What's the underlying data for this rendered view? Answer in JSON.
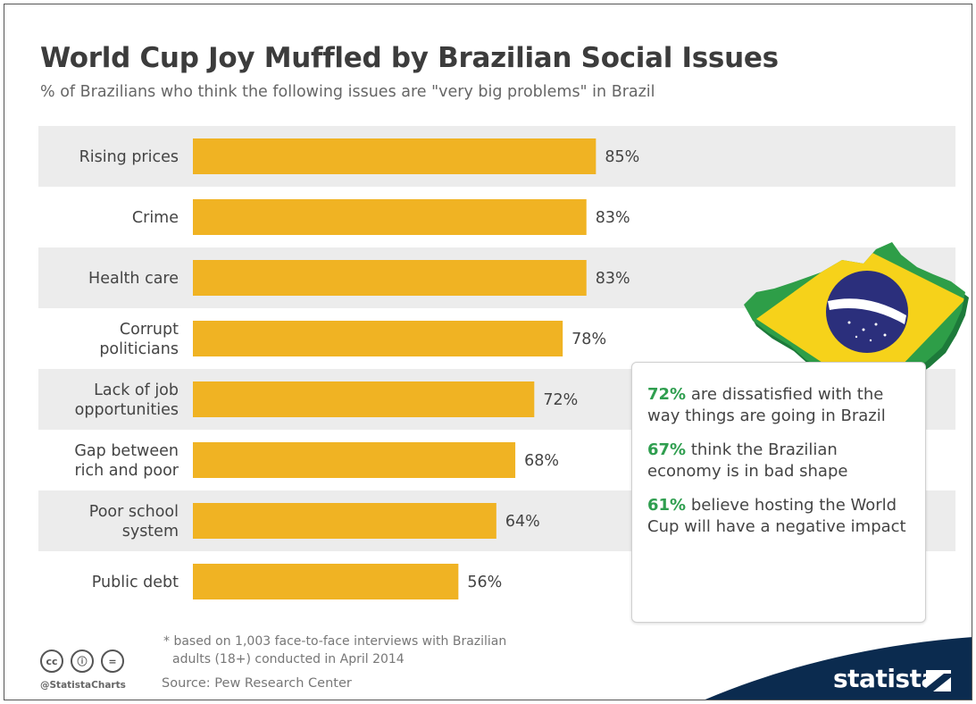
{
  "title": "World Cup Joy Muffled by Brazilian Social Issues",
  "subtitle": "% of Brazilians who think the following issues are \"very big problems\" in Brazil",
  "chart_data": {
    "type": "bar",
    "orientation": "horizontal",
    "categories": [
      "Rising prices",
      "Crime",
      "Health care",
      "Corrupt politicians",
      "Lack of job opportunities",
      "Gap between rich and poor",
      "Poor school system",
      "Public debt"
    ],
    "category_lines": [
      [
        "Rising prices"
      ],
      [
        "Crime"
      ],
      [
        "Health care"
      ],
      [
        "Corrupt",
        "politicians"
      ],
      [
        "Lack of job",
        "opportunities"
      ],
      [
        "Gap between",
        "rich and poor"
      ],
      [
        "Poor school",
        "system"
      ],
      [
        "Public debt"
      ]
    ],
    "values": [
      85,
      83,
      83,
      78,
      72,
      68,
      64,
      56
    ],
    "value_labels": [
      "85%",
      "83%",
      "83%",
      "78%",
      "72%",
      "68%",
      "64%",
      "56%"
    ],
    "xlim": [
      0,
      100
    ],
    "bar_color": "#f0b323",
    "stripe_color": "#ececec"
  },
  "info_box": {
    "items": [
      {
        "pct": "72%",
        "text": " are dissatisfied with the way things are going in Brazil"
      },
      {
        "pct": "67%",
        "text": " think the Brazilian economy is in bad shape"
      },
      {
        "pct": "61%",
        "text": " believe hosting the World Cup will have a negative impact"
      }
    ],
    "accent_color": "#2f9e4f"
  },
  "footnote": {
    "line1": "* based on 1,003 face-to-face interviews with Brazilian",
    "line2": "adults (18+) conducted in April 2014"
  },
  "source": "Source: Pew Research Center",
  "handle": "@StatistaCharts",
  "license_icons": [
    "cc-icon",
    "by-icon",
    "nd-icon"
  ],
  "license_glyphs": [
    "cc",
    "ⓘ",
    "="
  ],
  "brand": {
    "name": "statista",
    "band_color": "#0b2b4f"
  }
}
